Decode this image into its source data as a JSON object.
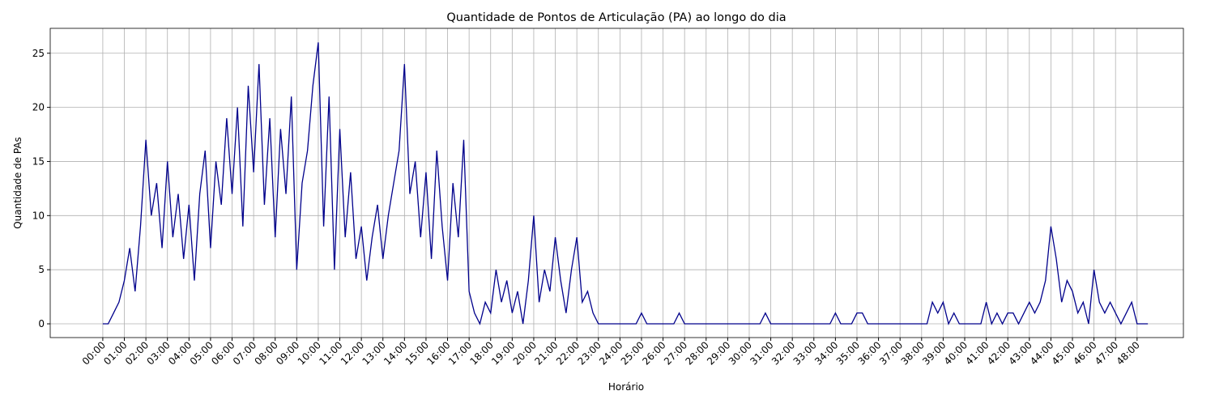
{
  "chart_data": {
    "type": "line",
    "title": "Quantidade de Pontos de Articulação (PA) ao longo do dia",
    "xlabel": "Horário",
    "ylabel": "Quantidade de PAs",
    "x": [
      0,
      0.25,
      0.5,
      0.75,
      1,
      1.25,
      1.5,
      1.75,
      2,
      2.25,
      2.5,
      2.75,
      3,
      3.25,
      3.5,
      3.75,
      4,
      4.25,
      4.5,
      4.75,
      5,
      5.25,
      5.5,
      5.75,
      6,
      6.25,
      6.5,
      6.75,
      7,
      7.25,
      7.5,
      7.75,
      8,
      8.25,
      8.5,
      8.75,
      9,
      9.25,
      9.5,
      9.75,
      10,
      10.25,
      10.5,
      10.75,
      11,
      11.25,
      11.5,
      11.75,
      12,
      12.25,
      12.5,
      12.75,
      13,
      13.25,
      13.5,
      13.75,
      14,
      14.25,
      14.5,
      14.75,
      15,
      15.25,
      15.5,
      15.75,
      16,
      16.25,
      16.5,
      16.75,
      17,
      17.25,
      17.5,
      17.75,
      18,
      18.25,
      18.5,
      18.75,
      19,
      19.25,
      19.5,
      19.75,
      20,
      20.25,
      20.5,
      20.75,
      21,
      21.25,
      21.5,
      21.75,
      22,
      22.25,
      22.5,
      22.75,
      23,
      23.25,
      23.5,
      23.75,
      24,
      24.25,
      24.5,
      24.75,
      25,
      25.25,
      25.5,
      25.75,
      26,
      26.25,
      26.5,
      26.75,
      27,
      27.25,
      27.5,
      27.75,
      28,
      28.25,
      28.5,
      28.75,
      29,
      29.25,
      29.5,
      29.75,
      30,
      30.25,
      30.5,
      30.75,
      31,
      31.25,
      31.5,
      31.75,
      32,
      32.25,
      32.5,
      32.75,
      33,
      33.25,
      33.5,
      33.75,
      34,
      34.25,
      34.5,
      34.75,
      35,
      35.25,
      35.5,
      35.75,
      36,
      36.25,
      36.5,
      36.75,
      37,
      37.25,
      37.5,
      37.75,
      38,
      38.25,
      38.5,
      38.75,
      39,
      39.25,
      39.5,
      39.75,
      40,
      40.25,
      40.5,
      40.75,
      41,
      41.25,
      41.5,
      41.75,
      42,
      42.25,
      42.5,
      42.75,
      43,
      43.25,
      43.5,
      43.75,
      44,
      44.25,
      44.5,
      44.75,
      45,
      45.25,
      45.5,
      45.75,
      46,
      46.25,
      46.5,
      46.75,
      47,
      47.25,
      47.5,
      47.75,
      48,
      48.25,
      48.5
    ],
    "series": [
      {
        "name": "PAs",
        "color": "#00008b",
        "values": [
          0,
          0,
          1,
          2,
          4,
          7,
          3,
          9,
          17,
          10,
          13,
          7,
          15,
          8,
          12,
          6,
          11,
          4,
          12,
          16,
          7,
          15,
          11,
          19,
          12,
          20,
          9,
          22,
          14,
          24,
          11,
          19,
          8,
          18,
          12,
          21,
          5,
          13,
          16,
          22,
          26,
          9,
          21,
          5,
          18,
          8,
          14,
          6,
          9,
          4,
          8,
          11,
          6,
          10,
          13,
          16,
          24,
          12,
          15,
          8,
          14,
          6,
          16,
          9,
          4,
          13,
          8,
          17,
          3,
          1,
          0,
          2,
          1,
          5,
          2,
          4,
          1,
          3,
          0,
          4,
          10,
          2,
          5,
          3,
          8,
          4,
          1,
          5,
          8,
          2,
          3,
          1,
          0,
          0,
          0,
          0,
          0,
          0,
          0,
          0,
          1,
          0,
          0,
          0,
          0,
          0,
          0,
          1,
          0,
          0,
          0,
          0,
          0,
          0,
          0,
          0,
          0,
          0,
          0,
          0,
          0,
          0,
          0,
          1,
          0,
          0,
          0,
          0,
          0,
          0,
          0,
          0,
          0,
          0,
          0,
          0,
          1,
          0,
          0,
          0,
          1,
          1,
          0,
          0,
          0,
          0,
          0,
          0,
          0,
          0,
          0,
          0,
          0,
          0,
          2,
          1,
          2,
          0,
          1,
          0,
          0,
          0,
          0,
          0,
          2,
          0,
          1,
          0,
          1,
          1,
          0,
          1,
          2,
          1,
          2,
          4,
          9,
          6,
          2,
          4,
          3,
          1,
          2,
          0,
          5,
          2,
          1,
          2,
          1,
          0,
          1,
          2,
          0,
          0,
          0
        ]
      }
    ],
    "xlim": [
      -2.44,
      50.15
    ],
    "ylim": [
      -1.27,
      27.3
    ],
    "xticks": [
      {
        "value": 0,
        "label": "00:00"
      },
      {
        "value": 1,
        "label": "01:00"
      },
      {
        "value": 2,
        "label": "02:00"
      },
      {
        "value": 3,
        "label": "03:00"
      },
      {
        "value": 4,
        "label": "04:00"
      },
      {
        "value": 5,
        "label": "05:00"
      },
      {
        "value": 6,
        "label": "06:00"
      },
      {
        "value": 7,
        "label": "07:00"
      },
      {
        "value": 8,
        "label": "08:00"
      },
      {
        "value": 9,
        "label": "09:00"
      },
      {
        "value": 10,
        "label": "10:00"
      },
      {
        "value": 11,
        "label": "11:00"
      },
      {
        "value": 12,
        "label": "12:00"
      },
      {
        "value": 13,
        "label": "13:00"
      },
      {
        "value": 14,
        "label": "14:00"
      },
      {
        "value": 15,
        "label": "15:00"
      },
      {
        "value": 16,
        "label": "16:00"
      },
      {
        "value": 17,
        "label": "17:00"
      },
      {
        "value": 18,
        "label": "18:00"
      },
      {
        "value": 19,
        "label": "19:00"
      },
      {
        "value": 20,
        "label": "20:00"
      },
      {
        "value": 21,
        "label": "21:00"
      },
      {
        "value": 22,
        "label": "22:00"
      },
      {
        "value": 23,
        "label": "23:00"
      },
      {
        "value": 24,
        "label": "24:00"
      },
      {
        "value": 25,
        "label": "25:00"
      },
      {
        "value": 26,
        "label": "26:00"
      },
      {
        "value": 27,
        "label": "27:00"
      },
      {
        "value": 28,
        "label": "28:00"
      },
      {
        "value": 29,
        "label": "29:00"
      },
      {
        "value": 30,
        "label": "30:00"
      },
      {
        "value": 31,
        "label": "31:00"
      },
      {
        "value": 32,
        "label": "32:00"
      },
      {
        "value": 33,
        "label": "33:00"
      },
      {
        "value": 34,
        "label": "34:00"
      },
      {
        "value": 35,
        "label": "35:00"
      },
      {
        "value": 36,
        "label": "36:00"
      },
      {
        "value": 37,
        "label": "37:00"
      },
      {
        "value": 38,
        "label": "38:00"
      },
      {
        "value": 39,
        "label": "39:00"
      },
      {
        "value": 40,
        "label": "40:00"
      },
      {
        "value": 41,
        "label": "41:00"
      },
      {
        "value": 42,
        "label": "42:00"
      },
      {
        "value": 43,
        "label": "43:00"
      },
      {
        "value": 44,
        "label": "44:00"
      },
      {
        "value": 45,
        "label": "45:00"
      },
      {
        "value": 46,
        "label": "46:00"
      },
      {
        "value": 47,
        "label": "47:00"
      },
      {
        "value": 48,
        "label": "48:00"
      }
    ],
    "yticks": [
      0,
      5,
      10,
      15,
      20,
      25
    ],
    "grid": true
  }
}
